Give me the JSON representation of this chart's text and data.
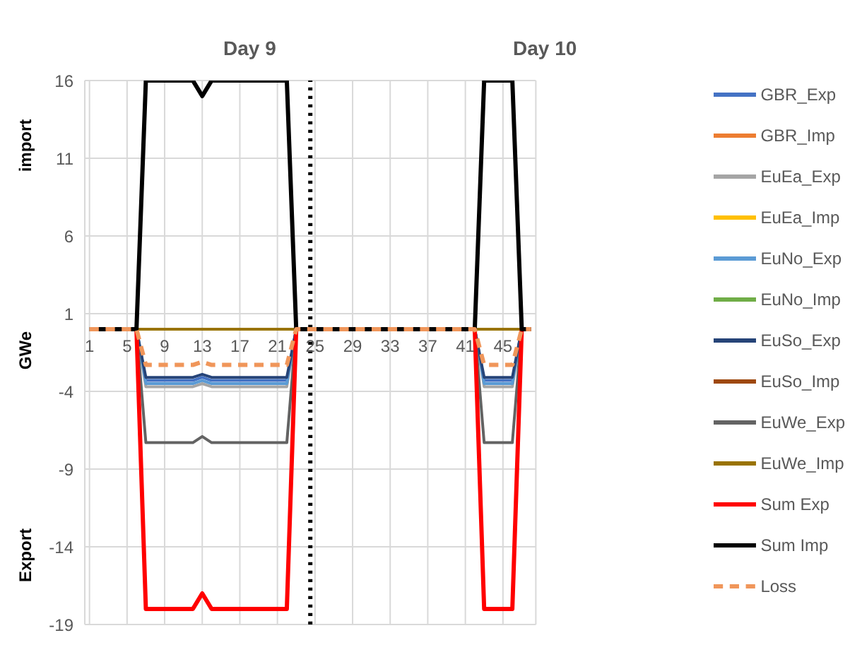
{
  "chart_data": {
    "type": "line",
    "ylabel": "GWe",
    "annotations": [
      "Day 9",
      "Day 10",
      "import",
      "Export"
    ],
    "x": [
      1,
      2,
      3,
      4,
      5,
      6,
      7,
      8,
      9,
      10,
      11,
      12,
      13,
      14,
      15,
      16,
      17,
      18,
      19,
      20,
      21,
      22,
      23,
      24,
      25,
      26,
      27,
      28,
      29,
      30,
      31,
      32,
      33,
      34,
      35,
      36,
      37,
      38,
      39,
      40,
      41,
      42,
      43,
      44,
      45,
      46,
      47,
      48
    ],
    "xlim": [
      0.5,
      48.5
    ],
    "xticks": [
      1,
      5,
      9,
      13,
      17,
      21,
      25,
      29,
      33,
      37,
      41,
      45
    ],
    "ylim": [
      -19,
      16
    ],
    "yticks": [
      -19,
      -14,
      -9,
      -4,
      1,
      6,
      11,
      16
    ],
    "grid": true,
    "legend": "right",
    "marker": "none",
    "ref_lines": [
      {
        "axis": "x",
        "value": 24.5,
        "color": "#000000",
        "line_style": "dotted"
      }
    ],
    "series": [
      {
        "name": "GBR_Exp",
        "color": "#4472c4",
        "values": [
          null,
          null,
          null,
          null,
          null,
          0,
          -3.3,
          -3.3,
          -3.3,
          -3.3,
          -3.3,
          -3.3,
          -3.1,
          -3.3,
          -3.3,
          -3.3,
          -3.3,
          -3.3,
          -3.3,
          -3.3,
          -3.3,
          -3.3,
          0,
          null,
          null,
          null,
          null,
          null,
          null,
          null,
          null,
          null,
          null,
          null,
          null,
          null,
          null,
          null,
          null,
          null,
          null,
          0,
          -3.3,
          -3.3,
          -3.3,
          -3.3,
          0,
          null
        ]
      },
      {
        "name": "GBR_Imp",
        "color": "#ed7d31",
        "values": [
          null,
          null,
          null,
          null,
          null,
          null,
          null,
          null,
          null,
          null,
          null,
          null,
          null,
          null,
          null,
          null,
          null,
          null,
          null,
          null,
          null,
          null,
          null,
          null,
          null,
          null,
          null,
          null,
          null,
          null,
          null,
          null,
          null,
          null,
          null,
          null,
          null,
          null,
          null,
          null,
          null,
          null,
          null,
          null,
          null,
          null,
          null,
          null
        ]
      },
      {
        "name": "EuEa_Exp",
        "color": "#a5a5a5",
        "values": [
          null,
          null,
          null,
          null,
          null,
          0,
          -3.7,
          -3.7,
          -3.7,
          -3.7,
          -3.7,
          -3.7,
          -3.5,
          -3.7,
          -3.7,
          -3.7,
          -3.7,
          -3.7,
          -3.7,
          -3.7,
          -3.7,
          -3.7,
          0,
          null,
          null,
          null,
          null,
          null,
          null,
          null,
          null,
          null,
          null,
          null,
          null,
          null,
          null,
          null,
          null,
          null,
          null,
          0,
          -3.7,
          -3.7,
          -3.7,
          -3.7,
          0,
          null
        ]
      },
      {
        "name": "EuEa_Imp",
        "color": "#ffc000",
        "values": [
          null,
          null,
          null,
          null,
          null,
          null,
          null,
          null,
          null,
          null,
          null,
          null,
          null,
          null,
          null,
          null,
          null,
          null,
          null,
          null,
          null,
          null,
          null,
          null,
          null,
          null,
          null,
          null,
          null,
          null,
          null,
          null,
          null,
          null,
          null,
          null,
          null,
          null,
          null,
          null,
          null,
          null,
          null,
          null,
          null,
          null,
          null,
          null
        ]
      },
      {
        "name": "EuNo_Exp",
        "color": "#5b9bd5",
        "values": [
          null,
          null,
          null,
          null,
          null,
          0,
          -3.5,
          -3.5,
          -3.5,
          -3.5,
          -3.5,
          -3.5,
          -3.3,
          -3.5,
          -3.5,
          -3.5,
          -3.5,
          -3.5,
          -3.5,
          -3.5,
          -3.5,
          -3.5,
          0,
          null,
          null,
          null,
          null,
          null,
          null,
          null,
          null,
          null,
          null,
          null,
          null,
          null,
          null,
          null,
          null,
          null,
          null,
          0,
          -3.5,
          -3.5,
          -3.5,
          -3.5,
          0,
          null
        ]
      },
      {
        "name": "EuNo_Imp",
        "color": "#70ad47",
        "values": [
          null,
          null,
          null,
          null,
          null,
          null,
          null,
          null,
          null,
          null,
          null,
          null,
          null,
          null,
          null,
          null,
          null,
          null,
          null,
          null,
          null,
          null,
          null,
          null,
          null,
          null,
          null,
          null,
          null,
          null,
          null,
          null,
          null,
          null,
          null,
          null,
          null,
          null,
          null,
          null,
          null,
          null,
          null,
          null,
          null,
          null,
          null,
          null
        ]
      },
      {
        "name": "EuSo_Exp",
        "color": "#264478",
        "values": [
          null,
          null,
          null,
          null,
          null,
          0,
          -3.1,
          -3.1,
          -3.1,
          -3.1,
          -3.1,
          -3.1,
          -2.9,
          -3.1,
          -3.1,
          -3.1,
          -3.1,
          -3.1,
          -3.1,
          -3.1,
          -3.1,
          -3.1,
          0,
          null,
          null,
          null,
          null,
          null,
          null,
          null,
          null,
          null,
          null,
          null,
          null,
          null,
          null,
          null,
          null,
          null,
          null,
          0,
          -3.1,
          -3.1,
          -3.1,
          -3.1,
          0,
          null
        ]
      },
      {
        "name": "EuSo_Imp",
        "color": "#9e480e",
        "values": [
          null,
          null,
          null,
          null,
          null,
          null,
          null,
          null,
          null,
          null,
          null,
          null,
          null,
          null,
          null,
          null,
          null,
          null,
          null,
          null,
          null,
          null,
          null,
          null,
          null,
          null,
          null,
          null,
          null,
          null,
          null,
          null,
          null,
          null,
          null,
          null,
          null,
          null,
          null,
          null,
          null,
          null,
          null,
          null,
          null,
          null,
          null,
          null
        ]
      },
      {
        "name": "EuWe_Exp",
        "color": "#636363",
        "values": [
          null,
          null,
          null,
          null,
          null,
          0,
          -7.3,
          -7.3,
          -7.3,
          -7.3,
          -7.3,
          -7.3,
          -6.9,
          -7.3,
          -7.3,
          -7.3,
          -7.3,
          -7.3,
          -7.3,
          -7.3,
          -7.3,
          -7.3,
          0,
          null,
          null,
          null,
          null,
          null,
          null,
          null,
          null,
          null,
          null,
          null,
          null,
          null,
          null,
          null,
          null,
          null,
          null,
          0,
          -7.3,
          -7.3,
          -7.3,
          -7.3,
          0,
          null
        ]
      },
      {
        "name": "EuWe_Imp",
        "color": "#997300",
        "values": [
          null,
          null,
          null,
          null,
          null,
          0,
          0,
          0,
          0,
          0,
          0,
          0,
          0,
          0,
          0,
          0,
          0,
          0,
          0,
          0,
          0,
          0,
          0,
          null,
          null,
          null,
          null,
          null,
          null,
          null,
          null,
          null,
          null,
          null,
          null,
          null,
          null,
          null,
          null,
          null,
          null,
          0,
          0,
          0,
          0,
          0,
          0,
          null
        ]
      },
      {
        "name": "Sum Exp",
        "color": "#ff0000",
        "values": [
          null,
          null,
          null,
          null,
          null,
          0,
          -18,
          -18,
          -18,
          -18,
          -18,
          -18,
          -17,
          -18,
          -18,
          -18,
          -18,
          -18,
          -18,
          -18,
          -18,
          -18,
          0,
          null,
          null,
          null,
          null,
          null,
          null,
          null,
          null,
          null,
          null,
          null,
          null,
          null,
          null,
          null,
          null,
          null,
          null,
          0,
          -18,
          -18,
          -18,
          -18,
          0,
          null
        ]
      },
      {
        "name": "Sum Imp",
        "color": "#000000",
        "values": [
          0,
          0,
          0,
          0,
          0,
          0,
          16,
          16,
          16,
          16,
          16,
          16,
          15,
          16,
          16,
          16,
          16,
          16,
          16,
          16,
          16,
          16,
          0,
          0,
          0,
          0,
          0,
          0,
          0,
          0,
          0,
          0,
          0,
          0,
          0,
          0,
          0,
          0,
          0,
          0,
          0,
          0,
          16,
          16,
          16,
          16,
          0,
          0
        ]
      },
      {
        "name": "Loss",
        "color": "#f0965a",
        "line_style": "dashed",
        "values": [
          0,
          0,
          0,
          0,
          0,
          0,
          -2.3,
          -2.3,
          -2.3,
          -2.3,
          -2.3,
          -2.3,
          -2.1,
          -2.3,
          -2.3,
          -2.3,
          -2.3,
          -2.3,
          -2.3,
          -2.3,
          -2.3,
          -2.3,
          0,
          0,
          0,
          0,
          0,
          0,
          0,
          0,
          0,
          0,
          0,
          0,
          0,
          0,
          0,
          0,
          0,
          0,
          0,
          0,
          -2.3,
          -2.3,
          -2.3,
          -2.3,
          0,
          0
        ]
      }
    ]
  }
}
